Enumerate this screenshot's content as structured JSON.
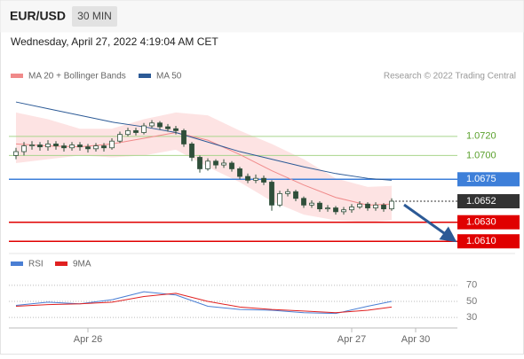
{
  "header": {
    "symbol": "EUR/USD",
    "interval": "30 MIN",
    "timestamp": "Wednesday, April 27, 2022 4:19:04 AM CET"
  },
  "chart_data": [
    {
      "type": "candlestick",
      "credit": "Research © 2022 Trading Central",
      "xlim": [
        -1,
        55.3
      ],
      "ylim": [
        1.06,
        1.077
      ],
      "up_color": "#ffffff",
      "down_color": "#2f4f3a",
      "wick_color": "#2f4f3a",
      "x": [
        0,
        1,
        2,
        3,
        4,
        5,
        6,
        7,
        8,
        9,
        10,
        11,
        12,
        13,
        14,
        15,
        16,
        17,
        18,
        19,
        20,
        21,
        22,
        23,
        24,
        25,
        26,
        27,
        28,
        29,
        30,
        31,
        32,
        33,
        34,
        35,
        36,
        37,
        38,
        39,
        40,
        41,
        42,
        43,
        44,
        45,
        46,
        47
      ],
      "open": [
        1.07,
        1.0704,
        1.071,
        1.0711,
        1.0709,
        1.0712,
        1.071,
        1.0708,
        1.0711,
        1.0709,
        1.0707,
        1.071,
        1.0708,
        1.0715,
        1.0722,
        1.0726,
        1.0724,
        1.0731,
        1.0734,
        1.073,
        1.0728,
        1.0726,
        1.0712,
        1.0698,
        1.0686,
        1.0694,
        1.069,
        1.0692,
        1.0686,
        1.0678,
        1.0674,
        1.0676,
        1.0672,
        1.0648,
        1.066,
        1.0662,
        1.0655,
        1.0648,
        1.065,
        1.0644,
        1.0645,
        1.0641,
        1.0643,
        1.0646,
        1.0649,
        1.0645,
        1.0648,
        1.0644
      ],
      "high": [
        1.0708,
        1.0714,
        1.0715,
        1.0714,
        1.0716,
        1.0715,
        1.0713,
        1.0714,
        1.0714,
        1.0712,
        1.0713,
        1.0713,
        1.0718,
        1.0725,
        1.0729,
        1.0729,
        1.0734,
        1.0737,
        1.0736,
        1.0733,
        1.0731,
        1.0728,
        1.0714,
        1.07,
        1.0697,
        1.0696,
        1.0696,
        1.0694,
        1.0688,
        1.0681,
        1.068,
        1.0679,
        1.0674,
        1.0663,
        1.0665,
        1.0664,
        1.0657,
        1.0653,
        1.0652,
        1.0648,
        1.0647,
        1.0646,
        1.0649,
        1.0652,
        1.0651,
        1.0651,
        1.065,
        1.0655
      ],
      "low": [
        1.0696,
        1.07,
        1.0706,
        1.0705,
        1.0705,
        1.0706,
        1.0704,
        1.0705,
        1.0705,
        1.0703,
        1.0704,
        1.0704,
        1.0706,
        1.0713,
        1.072,
        1.0721,
        1.0722,
        1.0729,
        1.0727,
        1.0725,
        1.0722,
        1.0709,
        1.0694,
        1.0682,
        1.0684,
        1.0686,
        1.0687,
        1.0683,
        1.0675,
        1.0671,
        1.0671,
        1.0669,
        1.0642,
        1.0646,
        1.0657,
        1.0652,
        1.0645,
        1.0645,
        1.0641,
        1.0641,
        1.0638,
        1.0638,
        1.064,
        1.0644,
        1.0642,
        1.0642,
        1.0641,
        1.0642
      ],
      "close": [
        1.0704,
        1.071,
        1.0711,
        1.0709,
        1.0712,
        1.071,
        1.0708,
        1.0711,
        1.0709,
        1.0707,
        1.071,
        1.0708,
        1.0715,
        1.0722,
        1.0726,
        1.0724,
        1.0731,
        1.0734,
        1.073,
        1.0728,
        1.0726,
        1.0712,
        1.0698,
        1.0686,
        1.0694,
        1.069,
        1.0692,
        1.0686,
        1.0678,
        1.0674,
        1.0676,
        1.0672,
        1.0648,
        1.066,
        1.0662,
        1.0655,
        1.0648,
        1.065,
        1.0644,
        1.0645,
        1.0641,
        1.0643,
        1.0646,
        1.0649,
        1.0645,
        1.0648,
        1.0644,
        1.0652
      ],
      "series": [
        {
          "name": "MA 20 + Bollinger Bands",
          "color": "#f08a8a",
          "band_color": "#fde3e3",
          "x": [
            0,
            4,
            8,
            12,
            16,
            20,
            24,
            28,
            32,
            36,
            40,
            44,
            47
          ],
          "values": [
            1.0712,
            1.071,
            1.0709,
            1.0712,
            1.0718,
            1.0724,
            1.0716,
            1.0701,
            1.0684,
            1.0669,
            1.0656,
            1.0648,
            1.0649
          ],
          "upper": [
            1.0745,
            1.0738,
            1.0728,
            1.0728,
            1.0738,
            1.0745,
            1.0742,
            1.0726,
            1.0712,
            1.0696,
            1.0676,
            1.0667,
            1.0668
          ],
          "lower": [
            1.0692,
            1.0696,
            1.07,
            1.0698,
            1.07,
            1.0706,
            1.0688,
            1.0672,
            1.0652,
            1.0638,
            1.0632,
            1.063,
            1.0632
          ]
        },
        {
          "name": "MA 50",
          "color": "#2c5a96",
          "x": [
            0,
            4,
            8,
            12,
            16,
            20,
            24,
            28,
            32,
            36,
            40,
            44,
            47
          ],
          "values": [
            1.0756,
            1.0749,
            1.0742,
            1.0735,
            1.073,
            1.0724,
            1.0714,
            1.0704,
            1.0696,
            1.0688,
            1.0681,
            1.0676,
            1.0674
          ]
        }
      ],
      "levels": [
        {
          "value": 1.072,
          "label": "1.0720",
          "color": "#a8d58c",
          "text_color": "#5aa02c",
          "boxed": false,
          "dash": false
        },
        {
          "value": 1.07,
          "label": "1.0700",
          "color": "#a8d58c",
          "text_color": "#5aa02c",
          "boxed": false,
          "dash": false
        },
        {
          "value": 1.0675,
          "label": "1.0675",
          "color": "#3d7fd9",
          "text_color": "#ffffff",
          "boxed": true,
          "dash": false
        },
        {
          "value": 1.0652,
          "label": "1.0652",
          "color": "#333333",
          "text_color": "#ffffff",
          "boxed": true,
          "dash": true
        },
        {
          "value": 1.063,
          "label": "1.0630",
          "color": "#e00000",
          "text_color": "#ffffff",
          "boxed": true,
          "dash": false
        },
        {
          "value": 1.061,
          "label": "1.0610",
          "color": "#e00000",
          "text_color": "#ffffff",
          "boxed": true,
          "dash": false
        }
      ]
    },
    {
      "type": "line",
      "xlim": [
        -1,
        55.3
      ],
      "ylim": [
        17,
        83
      ],
      "yticks": [
        70,
        50,
        30
      ],
      "xticks": [
        {
          "value": 9,
          "label": "Apr 26"
        },
        {
          "value": 42,
          "label": "Apr 27"
        },
        {
          "value": 50,
          "label": "Apr 30"
        }
      ],
      "series": [
        {
          "name": "RSI",
          "color": "#4a7fd4",
          "x": [
            0,
            4,
            8,
            12,
            16,
            20,
            24,
            28,
            32,
            36,
            40,
            44,
            47
          ],
          "values": [
            45,
            49,
            47,
            52,
            62,
            58,
            44,
            40,
            39,
            36,
            35,
            44,
            50
          ]
        },
        {
          "name": "9MA",
          "color": "#e02020",
          "x": [
            0,
            4,
            8,
            12,
            16,
            20,
            24,
            28,
            32,
            36,
            40,
            44,
            47
          ],
          "values": [
            44,
            46,
            47,
            49,
            56,
            60,
            50,
            43,
            40,
            38,
            36,
            39,
            43
          ]
        }
      ]
    }
  ]
}
